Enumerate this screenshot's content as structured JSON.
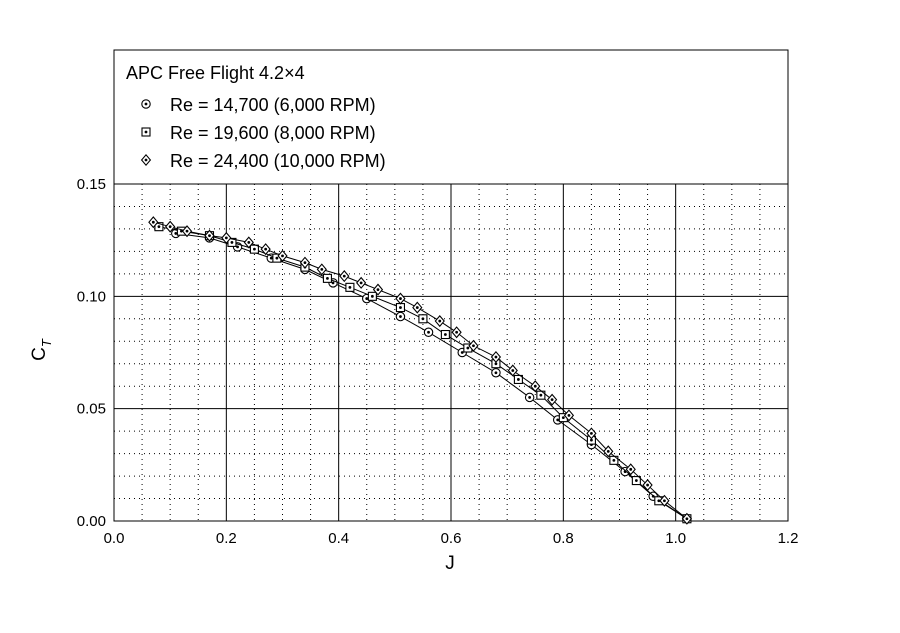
{
  "chart_data": {
    "type": "line",
    "title": "APC Free Flight 4.2×4",
    "xlabel": "J",
    "ylabel_main": "C",
    "ylabel_sub": "T",
    "xlim": [
      0.0,
      1.2
    ],
    "ylim": [
      0.0,
      0.15
    ],
    "x_ticks": [
      "0.0",
      "0.2",
      "0.4",
      "0.6",
      "0.8",
      "1.0",
      "1.2"
    ],
    "y_ticks": [
      "0.00",
      "0.05",
      "0.10",
      "0.15"
    ],
    "grid": true,
    "legend_position": "top",
    "series": [
      {
        "name": "Re = 14,700 (6,000 RPM)",
        "marker": "circle-dot",
        "x": [
          0.11,
          0.17,
          0.22,
          0.28,
          0.34,
          0.39,
          0.45,
          0.51,
          0.56,
          0.62,
          0.68,
          0.74,
          0.79,
          0.85,
          0.91,
          0.96,
          1.02
        ],
        "y": [
          0.128,
          0.126,
          0.122,
          0.117,
          0.112,
          0.106,
          0.099,
          0.091,
          0.084,
          0.075,
          0.066,
          0.055,
          0.045,
          0.034,
          0.022,
          0.011,
          0.001
        ]
      },
      {
        "name": "Re = 19,600 (8,000 RPM)",
        "marker": "square-dot",
        "x": [
          0.08,
          0.12,
          0.17,
          0.21,
          0.25,
          0.29,
          0.34,
          0.38,
          0.42,
          0.46,
          0.51,
          0.55,
          0.59,
          0.63,
          0.68,
          0.72,
          0.76,
          0.8,
          0.85,
          0.89,
          0.93,
          0.97,
          1.02
        ],
        "y": [
          0.131,
          0.129,
          0.127,
          0.124,
          0.121,
          0.117,
          0.113,
          0.108,
          0.104,
          0.1,
          0.095,
          0.09,
          0.083,
          0.077,
          0.07,
          0.063,
          0.056,
          0.046,
          0.036,
          0.027,
          0.018,
          0.009,
          0.001
        ]
      },
      {
        "name": "Re = 24,400 (10,000 RPM)",
        "marker": "diamond-dot",
        "x": [
          0.07,
          0.1,
          0.13,
          0.17,
          0.2,
          0.24,
          0.27,
          0.3,
          0.34,
          0.37,
          0.41,
          0.44,
          0.47,
          0.51,
          0.54,
          0.58,
          0.61,
          0.64,
          0.68,
          0.71,
          0.75,
          0.78,
          0.81,
          0.85,
          0.88,
          0.92,
          0.95,
          0.98,
          1.02
        ],
        "y": [
          0.133,
          0.131,
          0.129,
          0.127,
          0.126,
          0.124,
          0.121,
          0.118,
          0.115,
          0.112,
          0.109,
          0.106,
          0.103,
          0.099,
          0.095,
          0.089,
          0.084,
          0.078,
          0.073,
          0.067,
          0.06,
          0.054,
          0.047,
          0.039,
          0.031,
          0.023,
          0.016,
          0.009,
          0.001
        ]
      }
    ]
  }
}
